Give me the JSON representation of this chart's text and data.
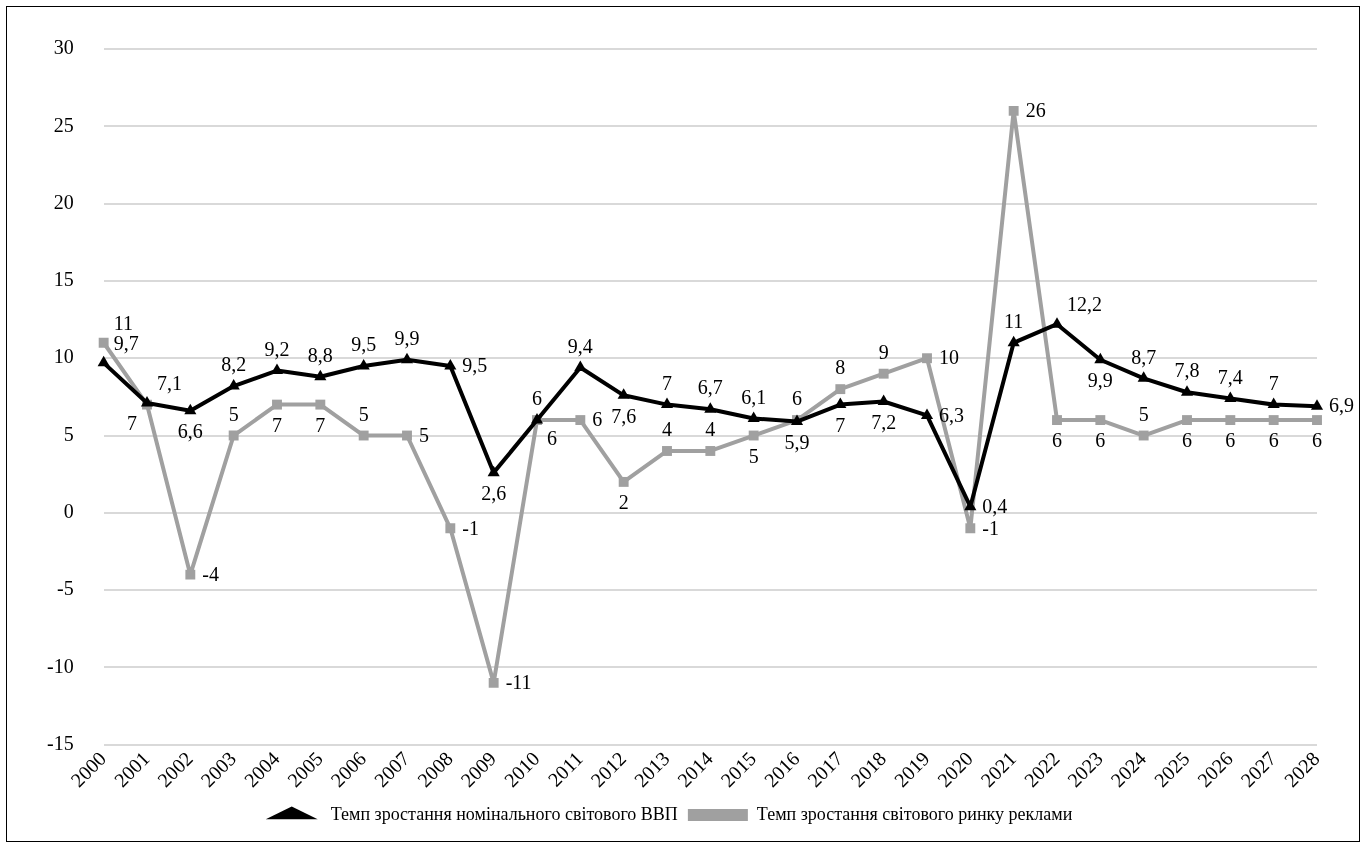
{
  "chart_data": {
    "type": "line",
    "categories": [
      "2000",
      "2001",
      "2002",
      "2003",
      "2004",
      "2005",
      "2006",
      "2007",
      "2008",
      "2009",
      "2010",
      "2011",
      "2012",
      "2013",
      "2014",
      "2015",
      "2016",
      "2017",
      "2018",
      "2019",
      "2020",
      "2021",
      "2022",
      "2023",
      "2024",
      "2025",
      "2026",
      "2027",
      "2028"
    ],
    "series": [
      {
        "name": "Темп зростання номінального світового ВВП",
        "color": "#000000",
        "marker": "triangle",
        "values": [
          9.7,
          7.1,
          6.6,
          8.2,
          9.2,
          8.8,
          9.5,
          9.9,
          9.5,
          2.6,
          6,
          9.4,
          7.6,
          7,
          6.7,
          6.1,
          5.9,
          7,
          7.2,
          6.3,
          0.4,
          11,
          12.2,
          9.9,
          8.7,
          7.8,
          7.4,
          7,
          6.9
        ],
        "value_labels": [
          "9,7",
          "7,1",
          "6,6",
          "8,2",
          "9,2",
          "8,8",
          "9,5",
          "9,9",
          "9,5",
          "2,6",
          "6",
          "9,4",
          "7,6",
          "7",
          "6,7",
          "6,1",
          "5,9",
          "7",
          "7,2",
          "6,3",
          "0,4",
          "11",
          "12,2",
          "9,9",
          "8,7",
          "7,8",
          "7,4",
          "7",
          "6,9"
        ]
      },
      {
        "name": "Темп зростання світового ринку реклами",
        "color": "#a0a0a0",
        "marker": "square",
        "values": [
          11,
          7,
          -4,
          5,
          7,
          7,
          5,
          5,
          -1,
          -11,
          6,
          6,
          2,
          4,
          4,
          5,
          6,
          8,
          9,
          10,
          -1,
          26,
          6,
          6,
          5,
          6,
          6,
          6,
          6
        ],
        "value_labels": [
          "11",
          "7",
          "-4",
          "5",
          "7",
          "7",
          "5",
          "5",
          "-1",
          "-11",
          "6",
          "6",
          "2",
          "4",
          "4",
          "5",
          "6",
          "8",
          "9",
          "10",
          "-1",
          "26",
          "6",
          "6",
          "5",
          "6",
          "6",
          "6",
          "6"
        ]
      }
    ],
    "ylim": [
      -15,
      30
    ],
    "yticks": [
      -15,
      -10,
      -5,
      0,
      5,
      10,
      15,
      20,
      25,
      30
    ],
    "grid": "y",
    "legend": "bottom",
    "line_style": "solid"
  }
}
